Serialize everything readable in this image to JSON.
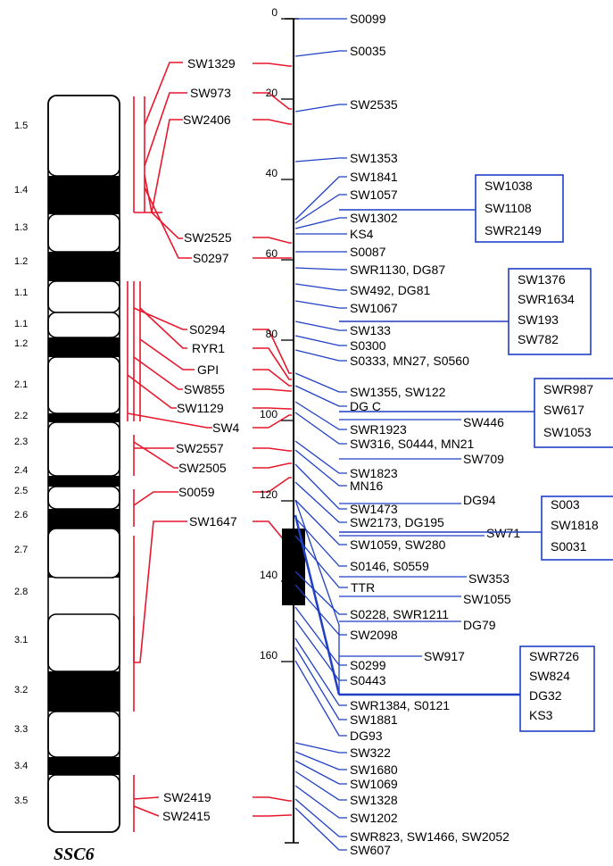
{
  "chromosome": {
    "name": "SSC6",
    "band_labels": [
      "1.5",
      "1.4",
      "1.3",
      "1.2",
      "1.1",
      "1.1",
      "1.2",
      "2.1",
      "2.2",
      "2.3",
      "2.4",
      "2.5",
      "2.6",
      "2.7",
      "2.8",
      "3.1",
      "3.2",
      "3.3",
      "3.4",
      "3.5"
    ]
  },
  "axis": {
    "ticks": [
      "0",
      "20",
      "40",
      "60",
      "80",
      "100",
      "120",
      "140",
      "160"
    ]
  },
  "cytogenetic_markers": [
    "SW1329",
    "SW973",
    "SW2406",
    "SW2525",
    "S0297",
    "S0294",
    "RYR1",
    "GPI",
    "SW855",
    "SW1129",
    "SW4",
    "SW2557",
    "SW2505",
    "S0059",
    "SW1647",
    "SW2419",
    "SW2415"
  ],
  "linkage_markers": [
    "S0099",
    "S0035",
    "SW2535",
    "SW1353",
    "SW1841",
    "SW1057",
    "SW1302",
    "KS4",
    "S0087",
    "SWR1130, DG87",
    "SW492, DG81",
    "SW1067",
    "SW133",
    "S0300",
    "S0333, MN27, S0560",
    "SW1355, SW122",
    "DG C",
    "SWR1923",
    "SW316, S0444, MN21",
    "SW1823",
    "MN16",
    "SW1473",
    "SW2173, DG195",
    "SW1059, SW280",
    "S0146, S0559",
    "TTR",
    "S0228, SWR1211",
    "SW2098",
    "S0299",
    "S0443",
    "SWR1384, S0121",
    "SW1881",
    "DG93",
    "SW322",
    "SW1680",
    "SW1069",
    "SW1328",
    "SW1202",
    "SWR823, SW1466, SW2052",
    "SW607"
  ],
  "right_markers": [
    "SW446",
    "SW709",
    "DG94",
    "SW71",
    "SW353",
    "SW1055",
    "DG79",
    "SW917"
  ],
  "boxes": [
    [
      "SW1038",
      "SW1108",
      "SWR2149"
    ],
    [
      "SW1376",
      "SWR1634",
      "SW193",
      "SW782"
    ],
    [
      "SWR987",
      "SW617",
      "SW1053"
    ],
    [
      "S003",
      "SW1818",
      "S0031"
    ],
    [
      "SWR726",
      "SW824",
      "DG32",
      "KS3"
    ]
  ],
  "colors": {
    "cytogenetic": "#e8172c",
    "linkage": "#1f3fc4",
    "ink": "#000000"
  }
}
